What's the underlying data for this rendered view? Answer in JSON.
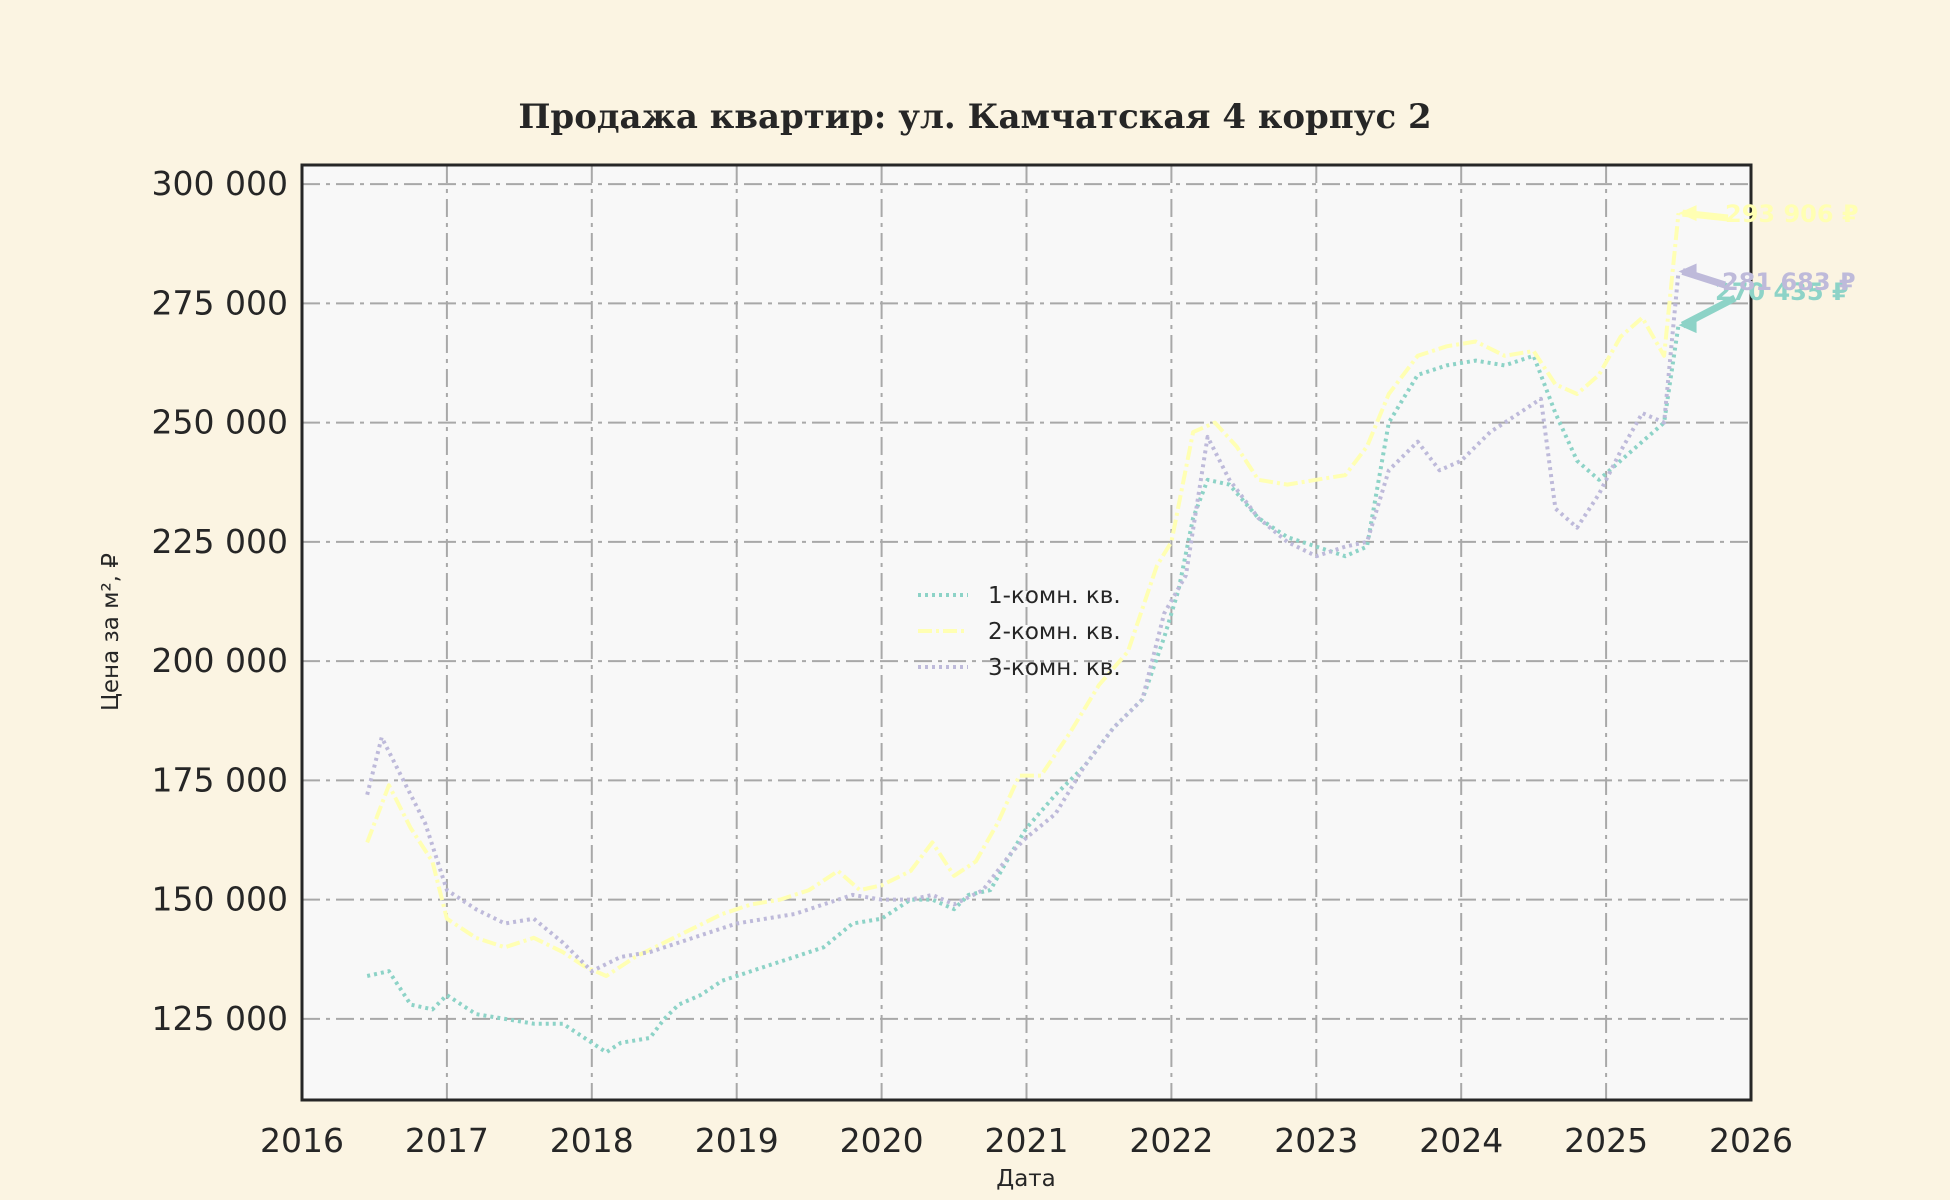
{
  "chart_data": {
    "type": "line",
    "title": "Продажа квартир: ул. Камчатская 4 корпус 2",
    "xlabel": "Дата",
    "ylabel": "Цена за м², ₽",
    "xlim": [
      2016,
      2026
    ],
    "ylim": [
      108000,
      304000
    ],
    "x_ticks": [
      "2016",
      "2017",
      "2018",
      "2019",
      "2020",
      "2021",
      "2022",
      "2023",
      "2024",
      "2025",
      "2026"
    ],
    "y_ticks": [
      "125 000",
      "150 000",
      "175 000",
      "200 000",
      "225 000",
      "250 000",
      "275 000",
      "300 000"
    ],
    "grid": true,
    "legend_position": "center",
    "series": [
      {
        "name": "1-комн. кв.",
        "color": "#8dd3c7",
        "line_style": "dotted",
        "end_label": "270 435 ₽",
        "points": [
          [
            2016.45,
            134000
          ],
          [
            2016.6,
            135000
          ],
          [
            2016.75,
            128000
          ],
          [
            2016.9,
            127000
          ],
          [
            2017.0,
            130000
          ],
          [
            2017.2,
            126000
          ],
          [
            2017.4,
            125000
          ],
          [
            2017.6,
            124000
          ],
          [
            2017.8,
            124000
          ],
          [
            2017.95,
            121000
          ],
          [
            2018.1,
            118000
          ],
          [
            2018.2,
            120000
          ],
          [
            2018.4,
            121000
          ],
          [
            2018.5,
            125000
          ],
          [
            2018.6,
            128000
          ],
          [
            2018.75,
            130000
          ],
          [
            2018.9,
            133000
          ],
          [
            2019.0,
            134000
          ],
          [
            2019.2,
            136000
          ],
          [
            2019.4,
            138000
          ],
          [
            2019.6,
            140000
          ],
          [
            2019.8,
            145000
          ],
          [
            2020.0,
            146000
          ],
          [
            2020.2,
            150000
          ],
          [
            2020.35,
            150000
          ],
          [
            2020.5,
            148000
          ],
          [
            2020.6,
            151000
          ],
          [
            2020.75,
            152000
          ],
          [
            2020.9,
            160000
          ],
          [
            2021.0,
            165000
          ],
          [
            2021.2,
            172000
          ],
          [
            2021.4,
            178000
          ],
          [
            2021.6,
            186000
          ],
          [
            2021.8,
            192000
          ],
          [
            2021.95,
            205000
          ],
          [
            2022.05,
            215000
          ],
          [
            2022.15,
            230000
          ],
          [
            2022.25,
            238000
          ],
          [
            2022.4,
            237000
          ],
          [
            2022.6,
            230000
          ],
          [
            2022.8,
            226000
          ],
          [
            2023.0,
            224000
          ],
          [
            2023.2,
            222000
          ],
          [
            2023.35,
            224000
          ],
          [
            2023.5,
            250000
          ],
          [
            2023.7,
            260000
          ],
          [
            2023.9,
            262000
          ],
          [
            2024.1,
            263000
          ],
          [
            2024.3,
            262000
          ],
          [
            2024.5,
            264000
          ],
          [
            2024.65,
            252000
          ],
          [
            2024.8,
            242000
          ],
          [
            2024.95,
            238000
          ],
          [
            2025.1,
            242000
          ],
          [
            2025.25,
            246000
          ],
          [
            2025.4,
            250000
          ],
          [
            2025.5,
            270435
          ]
        ]
      },
      {
        "name": "2-комн. кв.",
        "color": "#ffffb3",
        "line_style": "dashdot",
        "end_label": "293 906 ₽",
        "points": [
          [
            2016.45,
            162000
          ],
          [
            2016.6,
            174000
          ],
          [
            2016.75,
            165000
          ],
          [
            2016.9,
            158000
          ],
          [
            2017.0,
            146000
          ],
          [
            2017.2,
            142000
          ],
          [
            2017.4,
            140000
          ],
          [
            2017.6,
            142000
          ],
          [
            2017.8,
            139000
          ],
          [
            2017.95,
            136000
          ],
          [
            2018.1,
            134000
          ],
          [
            2018.3,
            138000
          ],
          [
            2018.5,
            141000
          ],
          [
            2018.7,
            144000
          ],
          [
            2018.9,
            147000
          ],
          [
            2019.1,
            149000
          ],
          [
            2019.3,
            150000
          ],
          [
            2019.5,
            152000
          ],
          [
            2019.7,
            156000
          ],
          [
            2019.85,
            152000
          ],
          [
            2020.0,
            153000
          ],
          [
            2020.2,
            156000
          ],
          [
            2020.35,
            162000
          ],
          [
            2020.5,
            155000
          ],
          [
            2020.65,
            158000
          ],
          [
            2020.8,
            166000
          ],
          [
            2020.95,
            176000
          ],
          [
            2021.1,
            176000
          ],
          [
            2021.3,
            185000
          ],
          [
            2021.5,
            195000
          ],
          [
            2021.7,
            202000
          ],
          [
            2021.9,
            220000
          ],
          [
            2022.0,
            225000
          ],
          [
            2022.15,
            248000
          ],
          [
            2022.3,
            250000
          ],
          [
            2022.45,
            245000
          ],
          [
            2022.6,
            238000
          ],
          [
            2022.8,
            237000
          ],
          [
            2023.0,
            238000
          ],
          [
            2023.2,
            239000
          ],
          [
            2023.35,
            245000
          ],
          [
            2023.5,
            256000
          ],
          [
            2023.7,
            264000
          ],
          [
            2023.9,
            266000
          ],
          [
            2024.1,
            267000
          ],
          [
            2024.3,
            264000
          ],
          [
            2024.5,
            265000
          ],
          [
            2024.65,
            258000
          ],
          [
            2024.8,
            256000
          ],
          [
            2024.95,
            260000
          ],
          [
            2025.1,
            268000
          ],
          [
            2025.25,
            272000
          ],
          [
            2025.4,
            264000
          ],
          [
            2025.5,
            293906
          ]
        ]
      },
      {
        "name": "3-комн. кв.",
        "color": "#bebada",
        "line_style": "dotted",
        "end_label": "281 683 ₽",
        "points": [
          [
            2016.45,
            172000
          ],
          [
            2016.55,
            184000
          ],
          [
            2016.7,
            175000
          ],
          [
            2016.85,
            166000
          ],
          [
            2017.0,
            152000
          ],
          [
            2017.2,
            148000
          ],
          [
            2017.4,
            145000
          ],
          [
            2017.6,
            146000
          ],
          [
            2017.8,
            141000
          ],
          [
            2018.0,
            135000
          ],
          [
            2018.2,
            138000
          ],
          [
            2018.4,
            139000
          ],
          [
            2018.6,
            141000
          ],
          [
            2018.8,
            143000
          ],
          [
            2019.0,
            145000
          ],
          [
            2019.2,
            146000
          ],
          [
            2019.4,
            147000
          ],
          [
            2019.6,
            149000
          ],
          [
            2019.8,
            151000
          ],
          [
            2020.0,
            150000
          ],
          [
            2020.2,
            150000
          ],
          [
            2020.35,
            151000
          ],
          [
            2020.5,
            149000
          ],
          [
            2020.7,
            152000
          ],
          [
            2020.9,
            160000
          ],
          [
            2021.0,
            163000
          ],
          [
            2021.2,
            168000
          ],
          [
            2021.4,
            178000
          ],
          [
            2021.6,
            186000
          ],
          [
            2021.8,
            192000
          ],
          [
            2021.95,
            210000
          ],
          [
            2022.1,
            218000
          ],
          [
            2022.25,
            247000
          ],
          [
            2022.4,
            238000
          ],
          [
            2022.6,
            230000
          ],
          [
            2022.8,
            225000
          ],
          [
            2023.0,
            222000
          ],
          [
            2023.2,
            224000
          ],
          [
            2023.35,
            225000
          ],
          [
            2023.5,
            240000
          ],
          [
            2023.7,
            246000
          ],
          [
            2023.85,
            240000
          ],
          [
            2024.0,
            242000
          ],
          [
            2024.2,
            248000
          ],
          [
            2024.4,
            252000
          ],
          [
            2024.55,
            255000
          ],
          [
            2024.65,
            232000
          ],
          [
            2024.8,
            228000
          ],
          [
            2024.95,
            235000
          ],
          [
            2025.1,
            244000
          ],
          [
            2025.25,
            252000
          ],
          [
            2025.4,
            250000
          ],
          [
            2025.5,
            281683
          ]
        ]
      }
    ]
  }
}
